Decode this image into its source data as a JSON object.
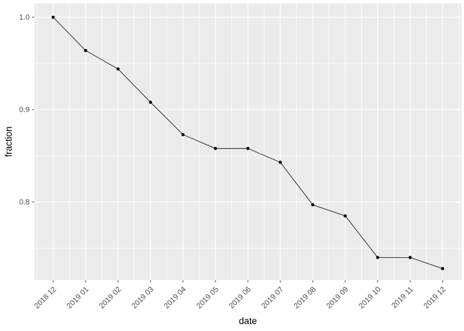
{
  "figure": {
    "background": "#ffffff"
  },
  "chart_data": {
    "type": "line",
    "title": "",
    "xlabel": "date",
    "ylabel": "fraction",
    "categories": [
      "2018 12",
      "2019 01",
      "2019 02",
      "2019 03",
      "2019 04",
      "2019 05",
      "2019 06",
      "2019 07",
      "2019 08",
      "2019 09",
      "2019 10",
      "2019 11",
      "2019 12"
    ],
    "values": [
      1.0,
      0.964,
      0.944,
      0.908,
      0.873,
      0.858,
      0.858,
      0.843,
      0.797,
      0.785,
      0.74,
      0.74,
      0.728
    ],
    "y_ticks": {
      "labels": [
        "1.0",
        "0.9",
        "0.8"
      ],
      "values": [
        1.0,
        0.9,
        0.8
      ]
    },
    "y_minor_ticks": [
      0.95,
      0.85,
      0.75
    ],
    "ylim": [
      0.71568,
      1.01493
    ],
    "grid": "major-and-minor",
    "legend": "none",
    "marker": "filled-circle",
    "colors": {
      "panel_background": "#ebebeb",
      "grid": "#ffffff",
      "line": "#000000",
      "point": "#000000",
      "tick_label": "#4d4d4d",
      "axis_title": "#000000",
      "tick_mark": "#333333"
    }
  }
}
